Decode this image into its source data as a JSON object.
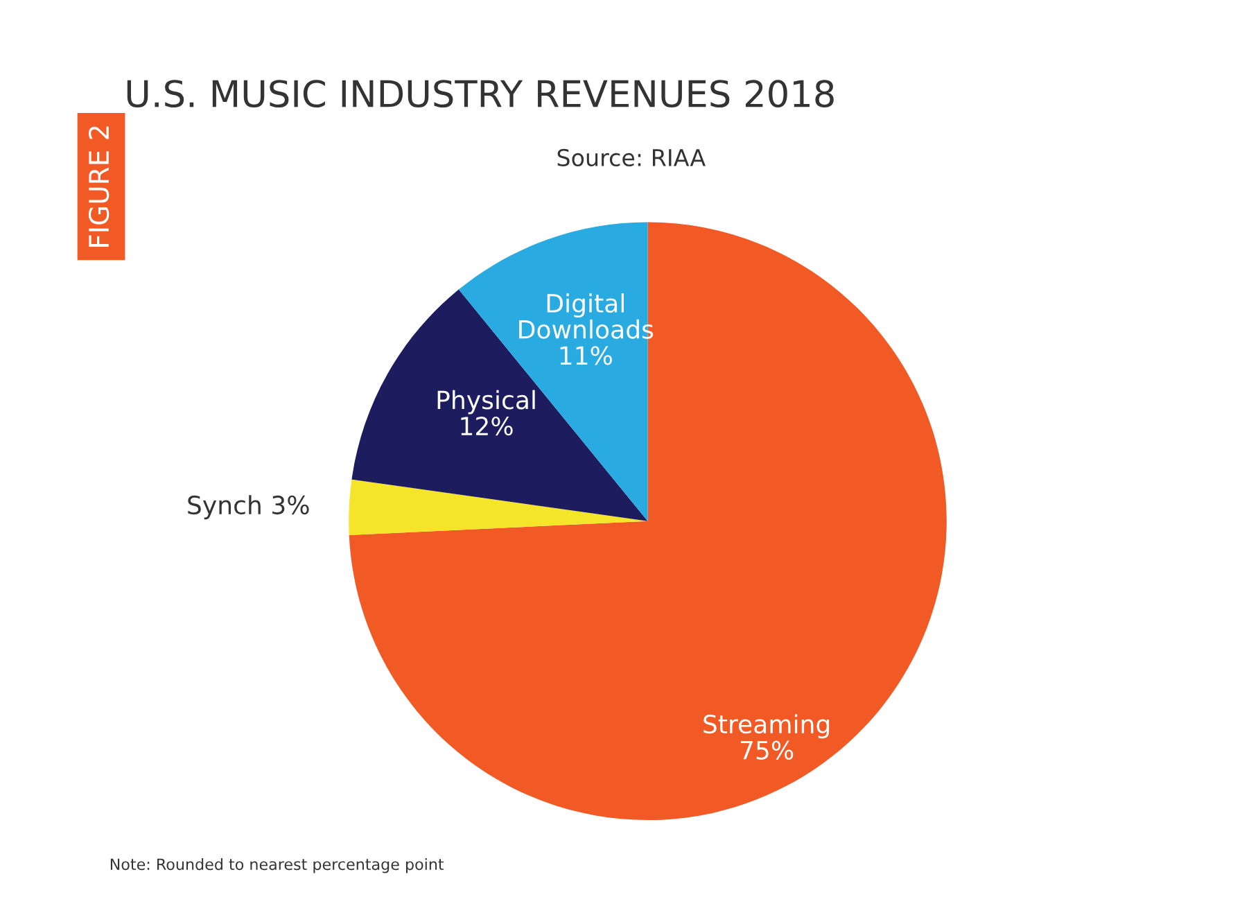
{
  "chart_data": {
    "type": "pie",
    "title": "U.S. MUSIC INDUSTRY REVENUES 2018",
    "subtitle": "Source: RIAA",
    "categories": [
      "Streaming",
      "Synch",
      "Physical",
      "Digital\nDownloads"
    ],
    "values": [
      75,
      3,
      12,
      11
    ],
    "value_labels": [
      "75%",
      "3%",
      "12%",
      "11%"
    ],
    "colors": [
      "#f15a24",
      "#f5e52a",
      "#1c1c5e",
      "#29abe2"
    ],
    "legend": false,
    "annotations": [
      "FIGURE 2",
      "Note: Rounded to nearest percentage point"
    ]
  }
}
